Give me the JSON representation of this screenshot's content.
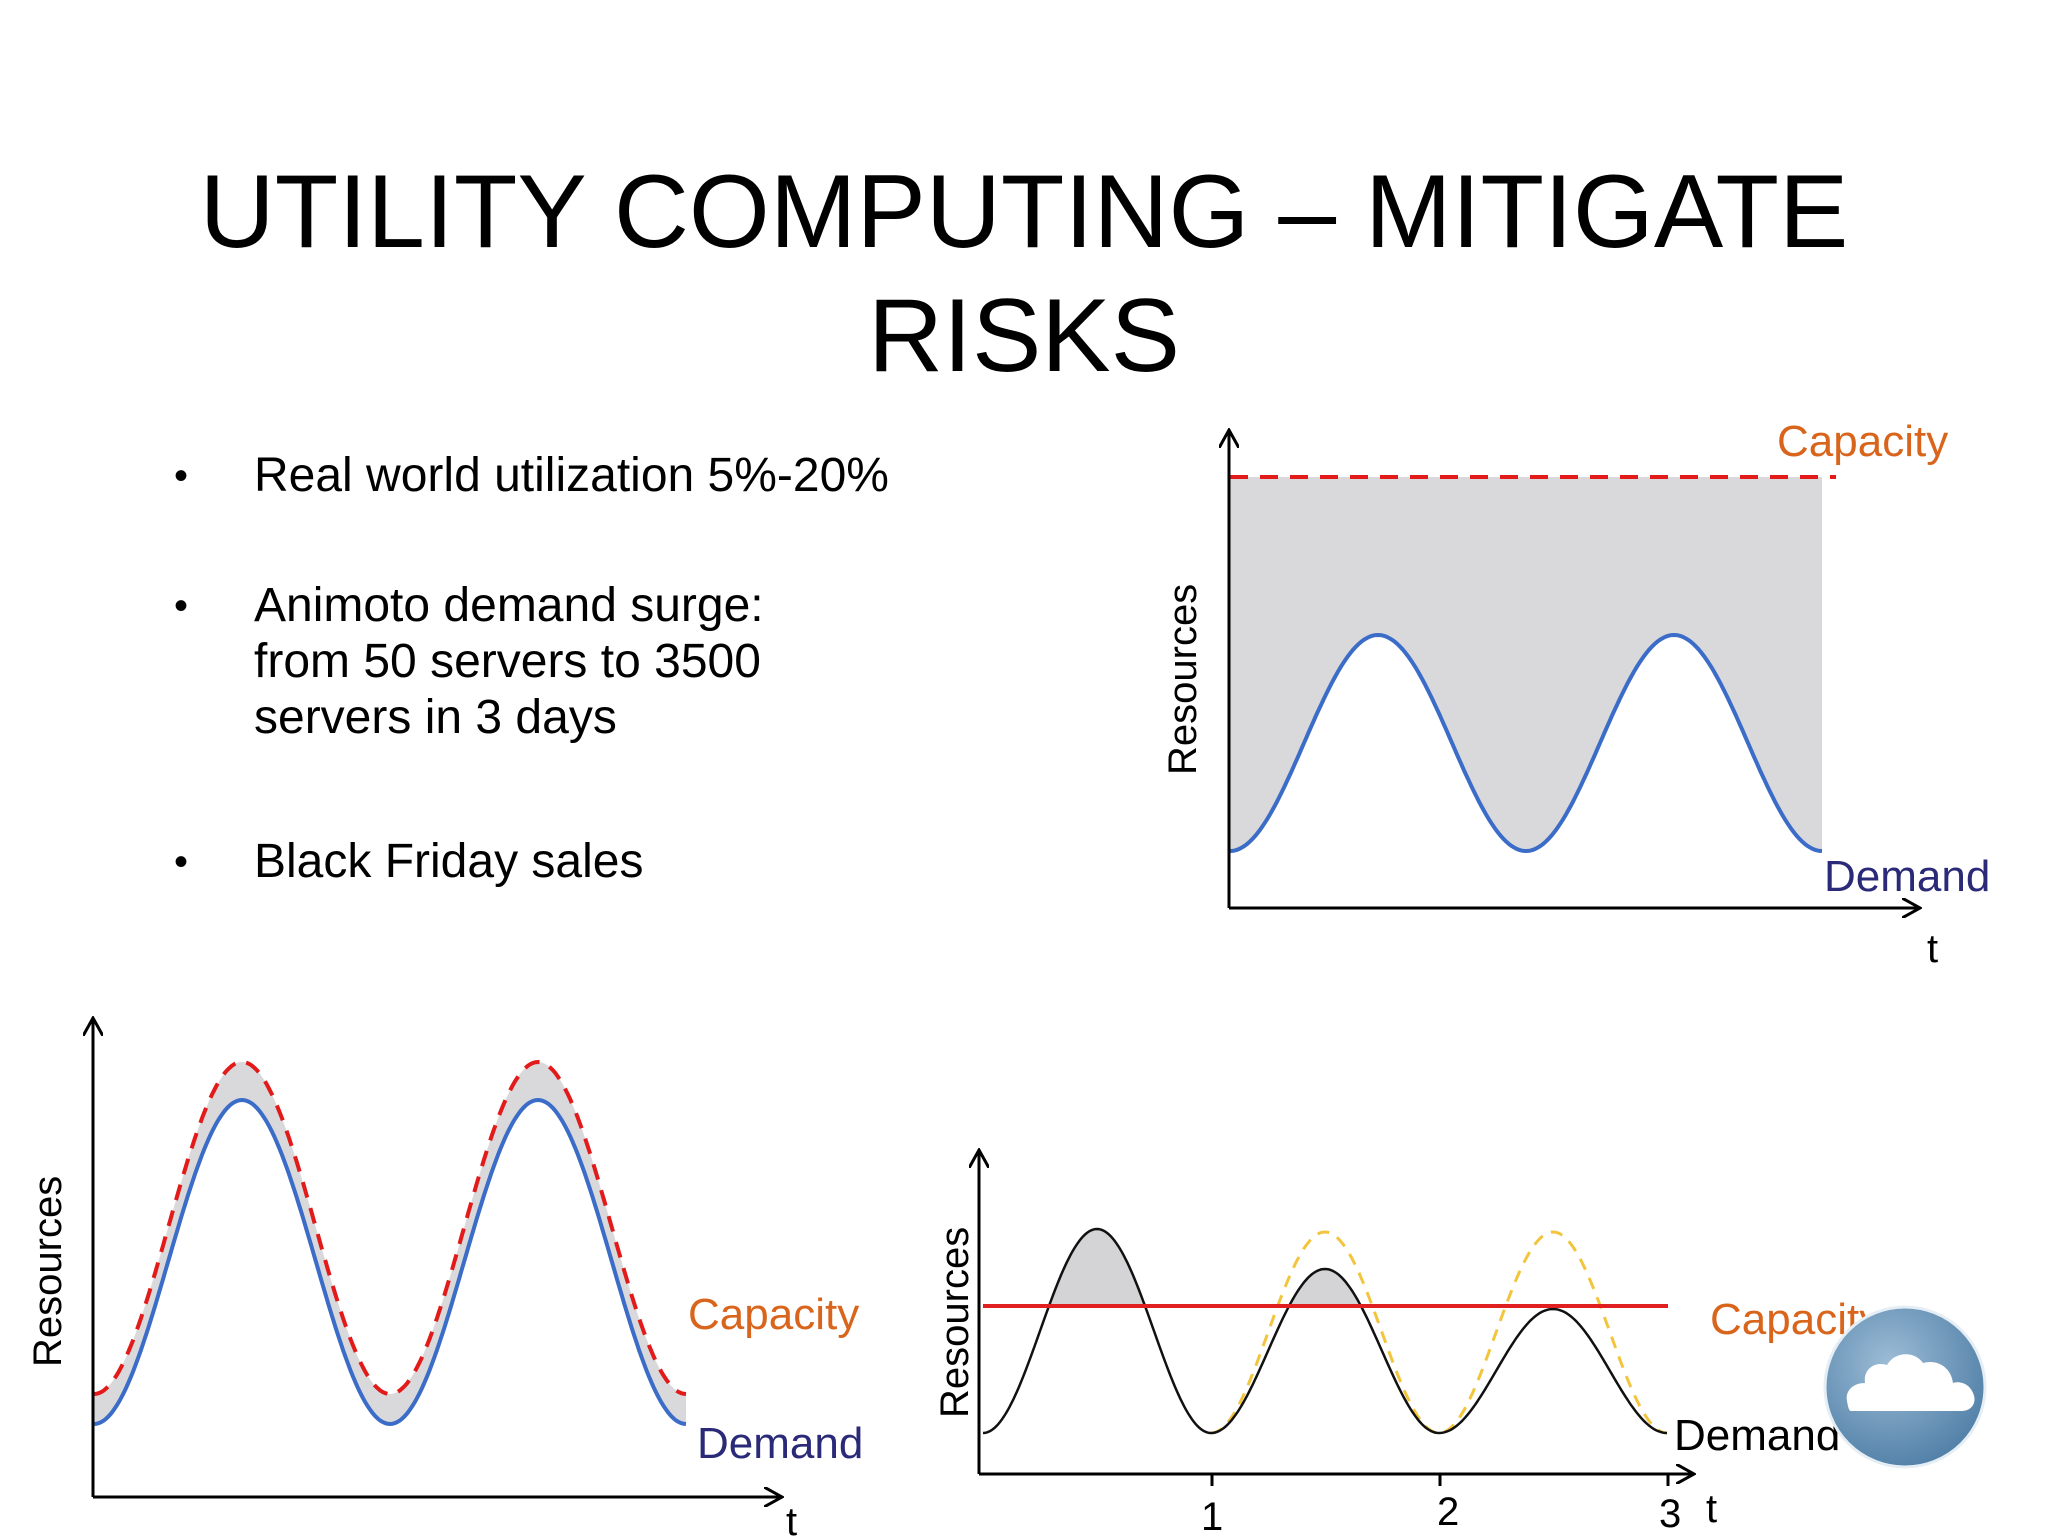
{
  "slide": {
    "title_line1": "UTILITY COMPUTING – MITIGATE",
    "title_line2": "RISKS"
  },
  "bullets": [
    {
      "lines": [
        "Real world utilization 5%-20%"
      ]
    },
    {
      "lines": [
        "Animoto demand surge:",
        "from 50 servers to 3500",
        "servers in 3 days"
      ]
    },
    {
      "lines": [
        "Black Friday sales"
      ]
    }
  ],
  "bullet_glyph": "•",
  "colors": {
    "demand_line": "#3a6cc8",
    "capacity_dashed": "#e31a1a",
    "capacity_solid": "#e02020",
    "gap_fill": "#d9d9db",
    "alt_demand_dashed": "#f2c53d",
    "label_orange": "#d9651c",
    "label_navy": "#2a2a78"
  },
  "logo": {
    "icon": "cloud-icon"
  },
  "chart_data": [
    {
      "type": "line",
      "id": "over-provisioning",
      "xlabel": "t",
      "ylabel": "Resources",
      "x": [
        0,
        0.25,
        0.5,
        0.75,
        1,
        1.25,
        1.5,
        1.75,
        2
      ],
      "series": [
        {
          "name": "Capacity",
          "style": "dashed",
          "values": [
            1,
            1,
            1,
            1,
            1,
            1,
            1,
            1,
            1
          ]
        },
        {
          "name": "Demand",
          "style": "solid",
          "values": [
            0,
            0.5,
            1,
            0.5,
            0,
            0.5,
            1,
            0.5,
            0
          ]
        }
      ],
      "shaded": "between capacity and demand"
    },
    {
      "type": "line",
      "id": "tracking-capacity",
      "xlabel": "t",
      "ylabel": "Resources",
      "series": [
        {
          "name": "Capacity",
          "style": "dashed",
          "values": [
            0,
            0.5,
            1,
            0.5,
            0,
            0.5,
            1,
            0.5,
            0
          ]
        },
        {
          "name": "Demand",
          "style": "solid",
          "values": [
            0,
            0.5,
            1,
            0.5,
            0,
            0.5,
            1,
            0.5,
            0
          ]
        }
      ],
      "shaded": "between capacity and demand"
    },
    {
      "type": "line",
      "id": "under-provisioning",
      "xlabel": "t",
      "ylabel": "Resources",
      "x_ticks": [
        "1",
        "2",
        "3"
      ],
      "x": [
        0,
        0.5,
        1,
        1.5,
        2,
        2.5,
        3
      ],
      "series": [
        {
          "name": "Capacity",
          "style": "solid",
          "values": [
            0.6,
            0.6,
            0.6,
            0.6,
            0.6,
            0.6,
            0.6
          ]
        },
        {
          "name": "Demand",
          "style": "solid",
          "values": [
            0,
            1,
            0,
            0.8,
            0,
            0.6,
            0
          ]
        },
        {
          "style": "dashed",
          "values": [
            0,
            1,
            0,
            1,
            0,
            1,
            0
          ]
        }
      ],
      "shaded": "demand above capacity"
    }
  ]
}
